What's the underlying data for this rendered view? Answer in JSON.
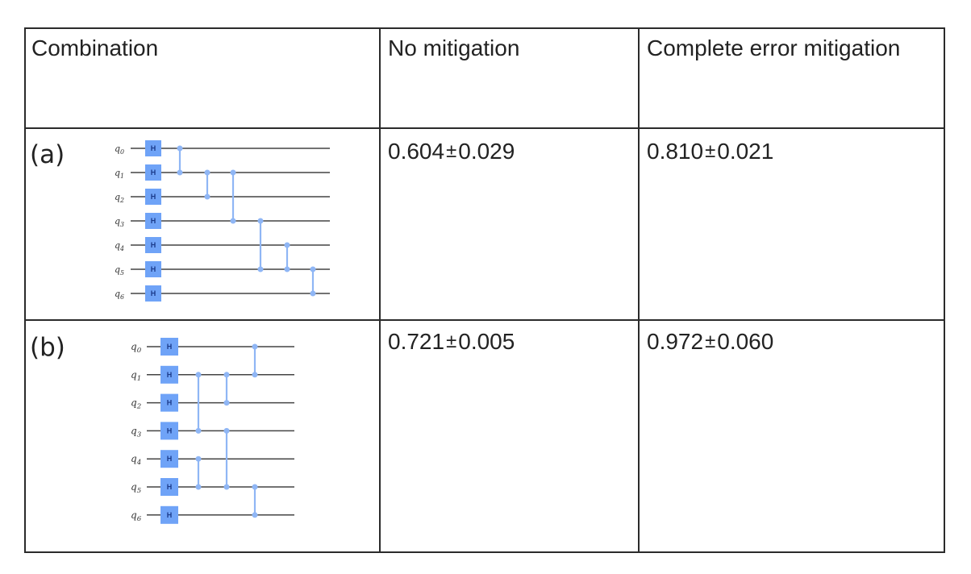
{
  "table": {
    "headers": [
      "Combination",
      "No mitigation",
      "Complete error mitigation"
    ],
    "rows": [
      {
        "label": "(a)",
        "no_mitigation": {
          "value": "0.604",
          "pm": "±",
          "error": "0.029"
        },
        "complete_mitigation": {
          "value": "0.810",
          "pm": "±",
          "error": "0.021"
        },
        "circuit": {
          "qubits": [
            "q0",
            "q1",
            "q2",
            "q3",
            "q4",
            "q5",
            "q6"
          ],
          "gate_label": "H",
          "cz_pairs": [
            [
              0,
              1
            ],
            [
              1,
              2
            ],
            [
              1,
              3
            ],
            [
              3,
              5
            ],
            [
              4,
              5
            ],
            [
              5,
              6
            ]
          ]
        }
      },
      {
        "label": "(b)",
        "no_mitigation": {
          "value": "0.721",
          "pm": "±",
          "error": "0.005"
        },
        "complete_mitigation": {
          "value": "0.972",
          "pm": "±",
          "error": "0.060"
        },
        "circuit": {
          "qubits": [
            "q0",
            "q1",
            "q2",
            "q3",
            "q4",
            "q5",
            "q6"
          ],
          "gate_label": "H",
          "cz_pairs": [
            [
              1,
              3
            ],
            [
              4,
              5
            ],
            [
              1,
              2
            ],
            [
              3,
              5
            ],
            [
              0,
              1
            ],
            [
              5,
              6
            ]
          ]
        }
      }
    ]
  },
  "colors": {
    "gate_fill": "#6fa3f7",
    "wire": "#444444",
    "cz": "#8fb6f5",
    "border": "#2b2b2b"
  }
}
